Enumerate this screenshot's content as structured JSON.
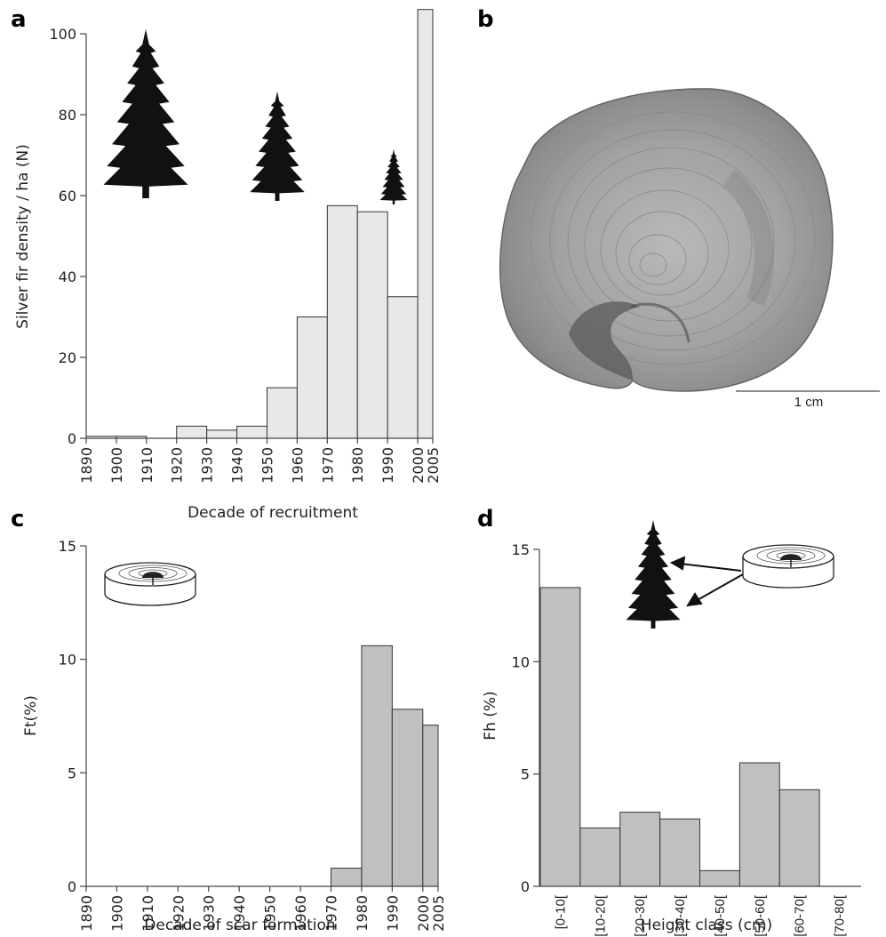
{
  "panels": {
    "a": {
      "letter": "a"
    },
    "b": {
      "letter": "b",
      "scale_label": "1 cm"
    },
    "c": {
      "letter": "c"
    },
    "d": {
      "letter": "d"
    }
  },
  "colors": {
    "bar_light": "#e8e8e8",
    "bar_gray": "#c0c0c0",
    "stroke": "#333333",
    "tree": "#111111"
  },
  "chart_data": [
    {
      "panel": "a",
      "type": "bar",
      "xlabel": "Decade of recruitment",
      "ylabel": "Silver fir density / ha (N)",
      "bin_edges": [
        1890,
        1900,
        1910,
        1920,
        1930,
        1940,
        1950,
        1960,
        1970,
        1980,
        1990,
        2000,
        2005
      ],
      "x_tick_labels": [
        "1890",
        "1900",
        "1910",
        "1920",
        "1930",
        "1940",
        "1950",
        "1960",
        "1970",
        "1980",
        "1990",
        "2000",
        "2005"
      ],
      "values": [
        0.5,
        0.5,
        0,
        3,
        2,
        3,
        12.5,
        30,
        57.5,
        56,
        35,
        106
      ],
      "ylim": [
        0,
        100
      ],
      "y_ticks": [
        "0",
        "20",
        "40",
        "60",
        "80",
        "100"
      ],
      "icons": [
        "tall-fir-icon",
        "medium-fir-icon",
        "small-fir-icon"
      ]
    },
    {
      "panel": "c",
      "type": "bar",
      "xlabel": "Decade of scar formation",
      "ylabel": "Ft(%)",
      "bin_edges": [
        1890,
        1900,
        1910,
        1920,
        1930,
        1940,
        1950,
        1960,
        1970,
        1980,
        1990,
        2000,
        2005
      ],
      "x_tick_labels": [
        "1890",
        "1900",
        "1910",
        "1920",
        "1930",
        "1940",
        "1950",
        "1960",
        "1970",
        "1980",
        "1990",
        "2000",
        "2005"
      ],
      "values": [
        0,
        0,
        0,
        0,
        0,
        0,
        0,
        0,
        0.8,
        10.6,
        7.8,
        7.1
      ],
      "ylim": [
        0,
        15
      ],
      "y_ticks": [
        "0",
        "5",
        "10",
        "15"
      ],
      "icons": [
        "tree-disc-icon"
      ]
    },
    {
      "panel": "d",
      "type": "bar",
      "xlabel": "Height class (cm)",
      "ylabel": "Fh (%)",
      "categories": [
        "[0-10[",
        "[10-20[",
        "[20-30[",
        "[30-40[",
        "[40-50[",
        "[50-60[",
        "[60-70[",
        "[70-80["
      ],
      "values": [
        13.3,
        2.6,
        3.3,
        3.0,
        0.7,
        5.5,
        4.3,
        0
      ],
      "ylim": [
        0,
        15
      ],
      "y_ticks": [
        "0",
        "5",
        "10",
        "15"
      ],
      "icons": [
        "fir-sapling-icon",
        "tree-disc-icon"
      ]
    }
  ]
}
